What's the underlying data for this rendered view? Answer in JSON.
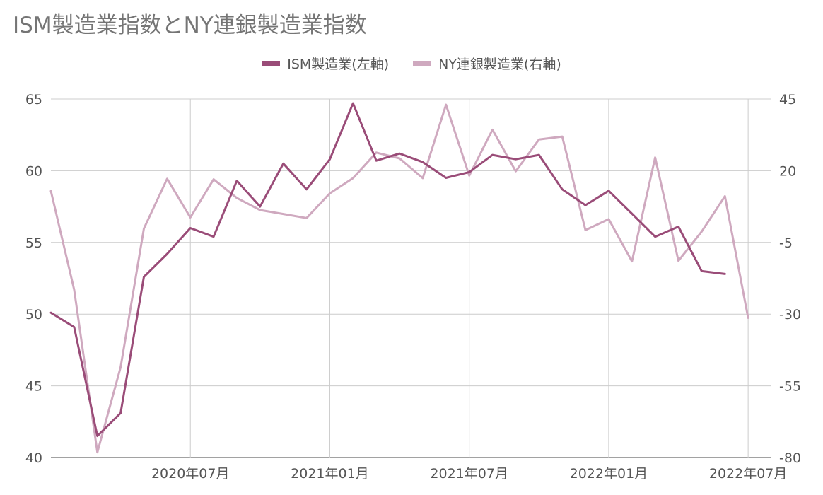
{
  "title": "ISM製造業指数とNY連銀製造業指数",
  "legend": [
    {
      "label": "ISM製造業(左軸)",
      "color": "#9a4c78"
    },
    {
      "label": "NY連銀製造業(右軸)",
      "color": "#cfa9bf"
    }
  ],
  "chart_data": {
    "type": "line",
    "title": "ISM製造業指数とNY連銀製造業指数",
    "x": [
      "2020-01",
      "2020-02",
      "2020-03",
      "2020-04",
      "2020-05",
      "2020-06",
      "2020-07",
      "2020-08",
      "2020-09",
      "2020-10",
      "2020-11",
      "2020-12",
      "2021-01",
      "2021-02",
      "2021-03",
      "2021-04",
      "2021-05",
      "2021-06",
      "2021-07",
      "2021-08",
      "2021-09",
      "2021-10",
      "2021-11",
      "2021-12",
      "2022-01",
      "2022-02",
      "2022-03",
      "2022-04",
      "2022-05",
      "2022-06",
      "2022-07",
      "2022-08"
    ],
    "x_ticks": [
      {
        "x": "2020-07",
        "label": "2020年07月"
      },
      {
        "x": "2021-01",
        "label": "2021年01月"
      },
      {
        "x": "2021-07",
        "label": "2021年07月"
      },
      {
        "x": "2022-01",
        "label": "2022年01月"
      },
      {
        "x": "2022-07",
        "label": "2022年07月"
      }
    ],
    "y_left": {
      "range": [
        40,
        65
      ],
      "ticks": [
        "65",
        "60",
        "55",
        "50",
        "45",
        "40"
      ]
    },
    "y_right": {
      "range": [
        -80,
        45
      ],
      "ticks": [
        "45",
        "20",
        "-5",
        "-30",
        "-55",
        "-80"
      ]
    },
    "grid": true,
    "legend_position": "top",
    "series": [
      {
        "name": "ISM製造業(左軸)",
        "axis": "left",
        "color": "#9a4c78",
        "values": [
          50.1,
          49.1,
          41.5,
          43.1,
          52.6,
          54.2,
          56.0,
          55.4,
          59.3,
          57.5,
          60.5,
          58.7,
          60.8,
          64.7,
          60.7,
          61.2,
          60.6,
          59.5,
          59.9,
          61.1,
          60.8,
          61.1,
          58.7,
          57.6,
          58.6,
          57.0,
          55.4,
          56.1,
          53.0,
          52.8,
          null,
          null
        ]
      },
      {
        "name": "NY連銀製造業(右軸)",
        "axis": "right",
        "color": "#cfa9bf",
        "values": [
          12.9,
          -21.5,
          -78.2,
          -48.5,
          -0.2,
          17.2,
          3.7,
          17.0,
          10.5,
          6.3,
          4.9,
          3.5,
          12.1,
          17.4,
          26.3,
          24.3,
          17.4,
          43.0,
          18.3,
          34.3,
          19.8,
          30.9,
          31.9,
          -0.7,
          3.1,
          -11.6,
          24.6,
          -11.4,
          -1.2,
          11.1,
          -31.3,
          null
        ]
      }
    ]
  }
}
